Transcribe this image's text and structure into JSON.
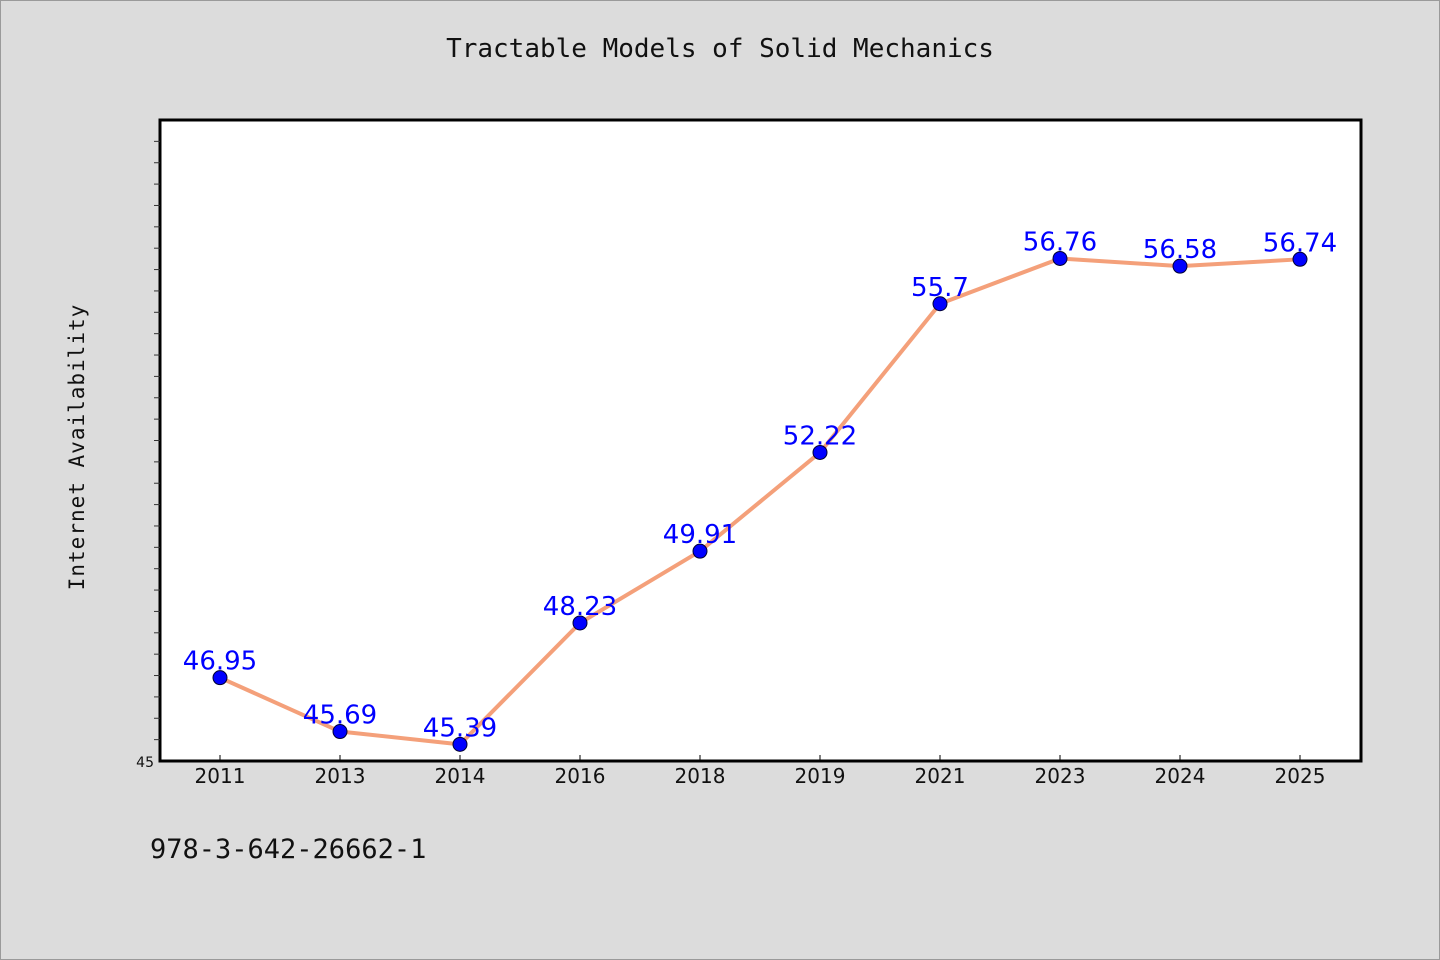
{
  "chart_data": {
    "type": "line",
    "title": "Tractable Models of Solid Mechanics",
    "ylabel": "Internet Availability",
    "xlabel": "",
    "categories": [
      "2011",
      "2013",
      "2014",
      "2016",
      "2018",
      "2019",
      "2021",
      "2023",
      "2024",
      "2025"
    ],
    "series": [
      {
        "values": [
          46.95,
          45.69,
          45.39,
          48.23,
          49.91,
          52.22,
          55.7,
          56.76,
          56.58,
          56.74
        ],
        "value_labels": [
          "46.95",
          "45.69",
          "45.39",
          "48.23",
          "49.91",
          "52.22",
          "55.7",
          "56.76",
          "56.58",
          "56.74"
        ]
      }
    ],
    "ylim": [
      45,
      60
    ],
    "y_tick_labels": [
      "45"
    ],
    "grid": false,
    "legend": "none",
    "colors": {
      "line": "#f4a07a",
      "marker": "#0000ff",
      "data_label": "#0000ff",
      "plot_background": "#ffffff",
      "page_background": "#dcdcdc"
    }
  },
  "footnote": "978-3-642-26662-1"
}
